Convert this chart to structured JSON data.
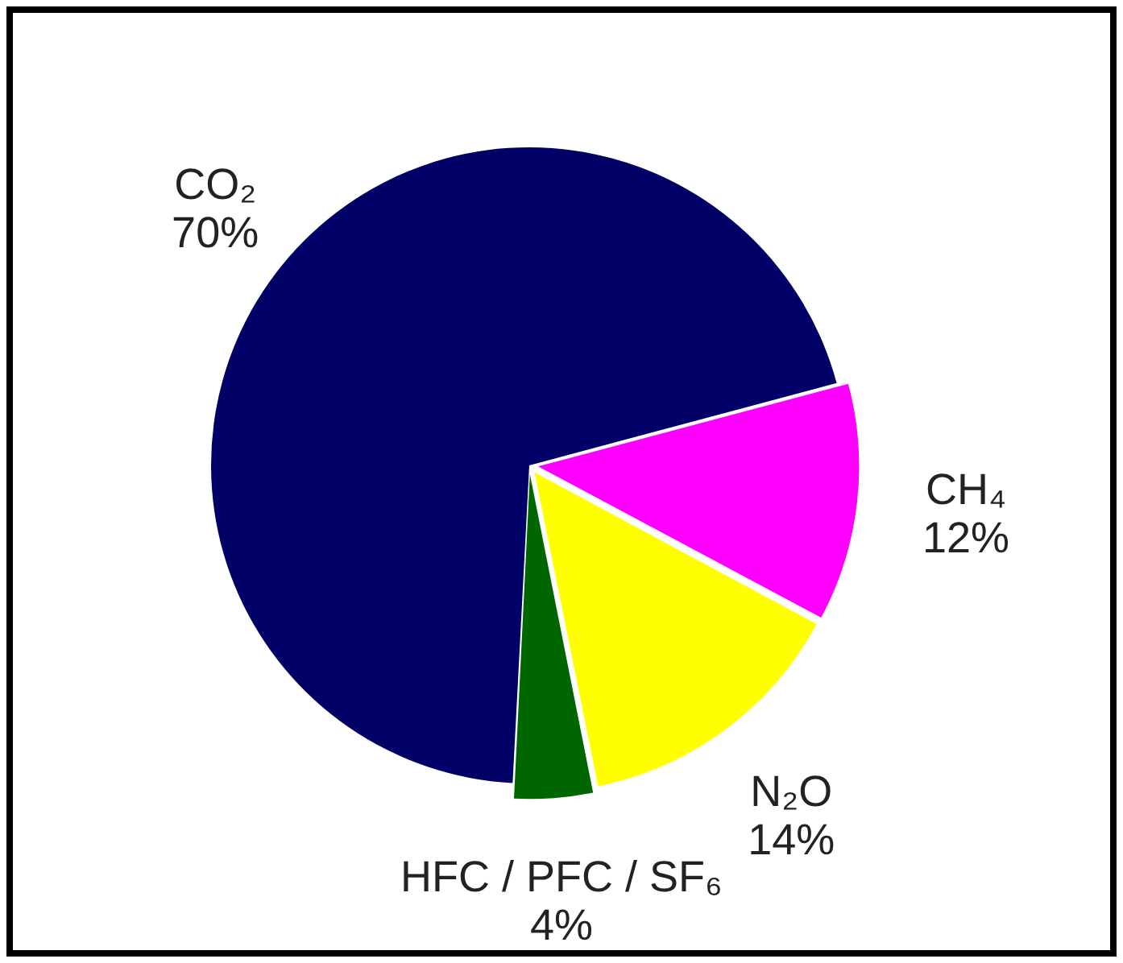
{
  "chart_data": {
    "type": "pie",
    "categories": [
      "CO₂",
      "CH₄",
      "N₂O",
      "HFC / PFC / SF₆"
    ],
    "values": [
      70,
      12,
      14,
      4
    ],
    "colors": [
      "#000066",
      "#ff00ff",
      "#ffff00",
      "#006600"
    ],
    "value_labels": [
      "70%",
      "12%",
      "14%",
      "4%"
    ],
    "legend": false
  }
}
